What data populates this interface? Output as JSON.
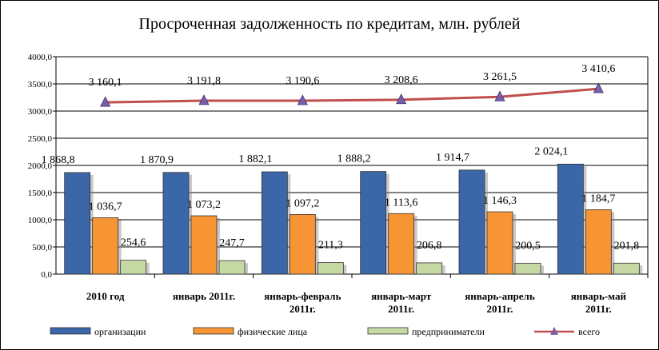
{
  "chart_data": {
    "type": "bar",
    "title": "Просроченная задолженность по кредитам, млн. рублей",
    "categories": [
      [
        "2010 год"
      ],
      [
        "январь 2011г."
      ],
      [
        "январь-февраль",
        "2011г."
      ],
      [
        "январь-март",
        "2011г."
      ],
      [
        "январь-апрель",
        "2011г."
      ],
      [
        "январь-май",
        "2011г."
      ]
    ],
    "ylim": [
      0,
      4000
    ],
    "yticks": [
      "0,0",
      "500,0",
      "1000,0",
      "1500,0",
      "2000,0",
      "2500,0",
      "3000,0",
      "3500,0",
      "4000,0"
    ],
    "grid": true,
    "legend_position": "bottom",
    "series": [
      {
        "name": "организации",
        "kind": "bar",
        "color": "#3B66A8",
        "values": [
          1868.8,
          1870.9,
          1882.1,
          1888.2,
          1914.7,
          2024.1
        ],
        "labels": [
          "1 868,8",
          "1 870,9",
          "1 882,1",
          "1 888,2",
          "1 914,7",
          "2 024,1"
        ]
      },
      {
        "name": "физические лица",
        "kind": "bar",
        "color": "#F79433",
        "values": [
          1036.7,
          1073.2,
          1097.2,
          1113.6,
          1146.3,
          1184.7
        ],
        "labels": [
          "1 036,7",
          "1 073,2",
          "1 097,2",
          "1 113,6",
          "1 146,3",
          "1 184,7"
        ]
      },
      {
        "name": "предприниматели",
        "kind": "bar",
        "color": "#C6D9A5",
        "values": [
          254.6,
          247.7,
          211.3,
          206.8,
          200.5,
          201.8
        ],
        "labels": [
          "254,6",
          "247,7",
          "211,3",
          "206,8",
          "200,5",
          "201,8"
        ]
      },
      {
        "name": "всего",
        "kind": "line",
        "color": "#C0504D",
        "marker_color": "#7B5EA7",
        "values": [
          3160.1,
          3191.8,
          3190.6,
          3208.6,
          3261.5,
          3410.6
        ],
        "labels": [
          "3 160,1",
          "3 191,8",
          "3 190,6",
          "3 208,6",
          "3 261,5",
          "3 410,6"
        ]
      }
    ]
  }
}
